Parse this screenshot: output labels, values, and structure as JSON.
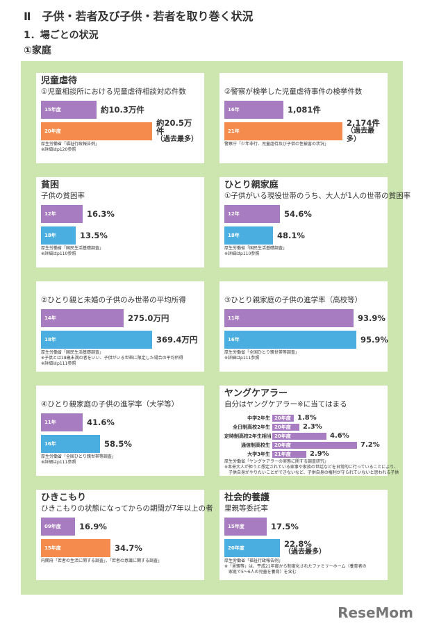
{
  "heading": "Ⅱ　子供・若者及び子供・若者を取り巻く状況",
  "subheading": "1．場ごとの状況",
  "section": "①家庭",
  "colors": {
    "panel": "#cde6b0",
    "purple": "#a87cc0",
    "orange": "#f58c4e",
    "blue": "#4aaee0"
  },
  "cards": [
    {
      "title": "児童虐待",
      "subtitle": "①児童相談所における児童虐待相談対応件数",
      "bars": [
        {
          "label": "15年度",
          "value": 10.3,
          "text": "約10.3万件",
          "color": "#a87cc0"
        },
        {
          "label": "20年度",
          "value": 20.5,
          "text": "約20.5万件",
          "note": "（過去最多）",
          "color": "#f58c4e"
        }
      ],
      "source": [
        "厚生労働省「福祉行政報告例」",
        "※詳細はp120参照"
      ]
    },
    {
      "title": "",
      "subtitle": "②警察が検挙した児童虐待事件の検挙件数",
      "bars": [
        {
          "label": "16年",
          "value": 1081,
          "text": "1,081件",
          "color": "#a87cc0"
        },
        {
          "label": "21年",
          "value": 2174,
          "text": "2,174件",
          "note": "（過去最多）",
          "color": "#f58c4e"
        }
      ],
      "source": [
        "警察庁「少年非行、児童虐待及び子供の性被害の状況」"
      ]
    },
    {
      "title": "貧困",
      "subtitle": "子供の貧困率",
      "bars": [
        {
          "label": "12年",
          "value": 16.3,
          "text": "16.3%",
          "color": "#a87cc0"
        },
        {
          "label": "18年",
          "value": 13.5,
          "text": "13.5%",
          "color": "#4aaee0"
        }
      ],
      "source": [
        "厚生労働省「国民生活基礎調査」",
        "※詳細はp110参照"
      ]
    },
    {
      "title": "ひとり親家庭",
      "subtitle": "①子供がいる現役世帯のうち、大人が1人の世帯の貧困率",
      "bars": [
        {
          "label": "12年",
          "value": 54.6,
          "text": "54.6%",
          "color": "#a87cc0"
        },
        {
          "label": "18年",
          "value": 48.1,
          "text": "48.1%",
          "color": "#4aaee0"
        }
      ],
      "source": [
        "厚生労働省「国民生活基礎調査」",
        "※詳細はp110参照"
      ]
    },
    {
      "title": "",
      "subtitle": "②ひとり親と未婚の子供のみ世帯の平均所得",
      "bars": [
        {
          "label": "14年",
          "value": 275.0,
          "text": "275.0万円",
          "color": "#a87cc0"
        },
        {
          "label": "18年",
          "value": 369.4,
          "text": "369.4万円",
          "color": "#4aaee0"
        }
      ],
      "source": [
        "厚生労働省「国民生活基礎調査」",
        "※子供とは18歳未満の者をいい、子供がいる世帯に限定した場合の平均所得",
        "※詳細はp111参照"
      ]
    },
    {
      "title": "",
      "subtitle": "③ひとり親家庭の子供の進学率（高校等）",
      "bars": [
        {
          "label": "11年",
          "value": 93.9,
          "text": "93.9%",
          "color": "#a87cc0"
        },
        {
          "label": "16年",
          "value": 95.9,
          "text": "95.9%",
          "color": "#4aaee0"
        }
      ],
      "source": [
        "厚生労働省「全国ひとり親世帯等調査」",
        "※詳細はp111参照"
      ]
    },
    {
      "title": "",
      "subtitle": "④ひとり親家庭の子供の進学率（大学等）",
      "bars": [
        {
          "label": "11年",
          "value": 41.6,
          "text": "41.6%",
          "color": "#a87cc0"
        },
        {
          "label": "16年",
          "value": 58.5,
          "text": "58.5%",
          "color": "#4aaee0"
        }
      ],
      "source": [
        "厚生労働省「全国ひとり親世帯等調査」",
        "※詳細はp111参照"
      ]
    },
    {
      "title": "ヤングケアラー",
      "subtitle": "自分はヤングケアラー※に当てはまる",
      "young": [
        {
          "group": "中学2年生",
          "label": "20年度",
          "value": 1.8,
          "text": "1.8%"
        },
        {
          "group": "全日制高校2年生",
          "label": "20年度",
          "value": 2.3,
          "text": "2.3%"
        },
        {
          "group": "定時制高校2年生相当",
          "label": "20年度",
          "value": 4.6,
          "text": "4.6%"
        },
        {
          "group": "通信制高校生",
          "label": "20年度",
          "value": 7.2,
          "text": "7.2%"
        },
        {
          "group": "大学3年生",
          "label": "21年度",
          "value": 2.9,
          "text": "2.9%"
        }
      ],
      "source": [
        "厚生労働省「ヤングケアラーの実態に関する調査研究」",
        "※本来大人が担うと想定されている家事や家族の世話などを日常的に行っていることにより、",
        "　子供自身がやりたいことができないなど、子供自身の権利が守られていないと思われる子供"
      ]
    },
    {
      "title": "ひきこもり",
      "subtitle": "ひきこもりの状態になってからの期間が7年以上の者",
      "bars": [
        {
          "label": "09年度",
          "value": 16.9,
          "text": "16.9%",
          "color": "#a87cc0"
        },
        {
          "label": "15年度",
          "value": 34.7,
          "text": "34.7%",
          "color": "#f58c4e"
        }
      ],
      "source": [
        "内閣府「若者の生活に関する調査」、「若者の意識に関する調査」"
      ]
    },
    {
      "title": "社会的養護",
      "subtitle": "里親等委託率",
      "bars": [
        {
          "label": "15年度",
          "value": 17.5,
          "text": "17.5%",
          "color": "#a87cc0"
        },
        {
          "label": "20年度",
          "value": 22.8,
          "text": "22.8%",
          "note": "（過去最多）",
          "color": "#4aaee0"
        }
      ],
      "source": [
        "厚生労働省「福祉行政報告例」",
        "※「里親等」は、平成21年度から制度化されたファミリーホーム（養育者の",
        "　家庭で5～6人の児童を養育）を含む"
      ]
    }
  ],
  "logo": "ReseMom"
}
